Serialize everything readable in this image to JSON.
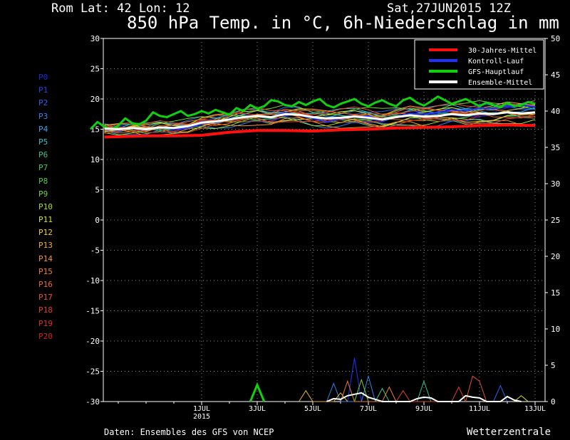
{
  "header": {
    "location": "Rom   Lat: 42 Lon: 12",
    "run": "Sat,27JUN2015 12Z",
    "title": "850 hPa Temp. in °C, 6h-Niederschlag in mm"
  },
  "footer": {
    "credit": "Daten: Ensembles des GFS von NCEP",
    "brand": "Wetterzentrale"
  },
  "members": [
    "P0",
    "P1",
    "P2",
    "P3",
    "P4",
    "P5",
    "P6",
    "P7",
    "P8",
    "P9",
    "P10",
    "P11",
    "P12",
    "P13",
    "P14",
    "P15",
    "P16",
    "P17",
    "P18",
    "P19",
    "P20"
  ],
  "member_colors": [
    "#1b2dd8",
    "#1f46e0",
    "#2266e8",
    "#2a86ee",
    "#2ea8ee",
    "#30c2cc",
    "#2ec896",
    "#36cc66",
    "#4ad040",
    "#76d430",
    "#a8dc2a",
    "#d8e02a",
    "#f0d028",
    "#f0b028",
    "#f09828",
    "#ee8028",
    "#ea6a28",
    "#e85428",
    "#e04028",
    "#d83028",
    "#cc2020"
  ],
  "chart_data": {
    "type": "line",
    "title": "850 hPa Temp. in °C, 6h-Niederschlag in mm",
    "x_ticks": [
      {
        "day": 4,
        "label": "1JUL",
        "sub": "2015"
      },
      {
        "day": 6,
        "label": "3JUL"
      },
      {
        "day": 8,
        "label": "5JUL"
      },
      {
        "day": 10,
        "label": "7JUL"
      },
      {
        "day": 12,
        "label": "9JUL"
      },
      {
        "day": 14,
        "label": "11JUL"
      },
      {
        "day": 16,
        "label": "13JUL"
      }
    ],
    "x_range_days": [
      0.5,
      16
    ],
    "y_left": {
      "range": [
        -30,
        30
      ],
      "ticks": [
        -30,
        -25,
        -20,
        -15,
        -10,
        -5,
        0,
        5,
        10,
        15,
        20,
        25,
        30
      ]
    },
    "y_right": {
      "range": [
        0,
        50
      ],
      "ticks": [
        0,
        5,
        10,
        15,
        20,
        25,
        30,
        35,
        40,
        45,
        50
      ]
    },
    "grid": "dotted",
    "legend_position": "top-right",
    "series": [
      {
        "name": "30-Jahres-Mittel",
        "color": "#ff1010",
        "width": 4,
        "x": [
          0.5,
          2,
          3,
          4,
          5,
          6,
          7,
          8,
          9,
          10,
          11,
          12,
          13,
          14,
          15,
          16
        ],
        "y": [
          13.7,
          13.9,
          13.9,
          14.0,
          14.5,
          14.8,
          14.8,
          14.7,
          14.9,
          15.0,
          15.2,
          15.3,
          15.4,
          15.6,
          15.7,
          15.6
        ]
      },
      {
        "name": "Kontroll-Lauf",
        "color": "#2030ff",
        "width": 2,
        "x": [
          0.5,
          1,
          1.5,
          2,
          2.5,
          3,
          3.5,
          4,
          4.5,
          5,
          5.5,
          6,
          6.5,
          7,
          7.5,
          8,
          8.5,
          9,
          9.5,
          10,
          10.5,
          11,
          11.5,
          12,
          12.5,
          13,
          13.5,
          14,
          14.5,
          15,
          15.5,
          16
        ],
        "y": [
          15.0,
          14.9,
          15.2,
          15.0,
          15.3,
          15.0,
          15.2,
          15.9,
          16.2,
          16.8,
          17.0,
          17.2,
          17.0,
          17.8,
          17.3,
          16.8,
          16.2,
          16.8,
          17.0,
          17.2,
          16.5,
          17.0,
          17.6,
          17.5,
          17.8,
          18.2,
          18.0,
          18.5,
          18.4,
          18.8,
          19.0,
          18.7
        ]
      },
      {
        "name": "GFS-Hauptlauf",
        "color": "#10d010",
        "width": 3,
        "x": [
          0,
          0.25,
          0.5,
          0.75,
          1,
          1.25,
          1.5,
          1.75,
          2,
          2.25,
          2.5,
          2.75,
          3,
          3.25,
          3.5,
          3.75,
          4,
          4.25,
          4.5,
          4.75,
          5,
          5.25,
          5.5,
          5.75,
          6,
          6.25,
          6.5,
          6.75,
          7,
          7.25,
          7.5,
          7.75,
          8,
          8.25,
          8.5,
          8.75,
          9,
          9.25,
          9.5,
          9.75,
          10,
          10.25,
          10.5,
          10.75,
          11,
          11.25,
          11.5,
          11.75,
          12,
          12.25,
          12.5,
          12.75,
          13,
          13.25,
          13.5,
          13.75,
          14,
          14.25,
          14.5,
          14.75,
          15,
          15.25,
          15.5,
          15.75,
          16
        ],
        "y": [
          15,
          16.2,
          15.4,
          15.0,
          15.6,
          16.8,
          16.0,
          15.8,
          16.4,
          17.8,
          17.2,
          17.0,
          17.5,
          18.0,
          17.2,
          17.5,
          18.0,
          17.6,
          18.2,
          17.8,
          17.4,
          18.5,
          18.0,
          19.0,
          18.4,
          18.8,
          19.8,
          19.6,
          19.0,
          18.8,
          19.5,
          19.0,
          19.6,
          20.0,
          19.0,
          18.6,
          19.2,
          19.6,
          20.0,
          19.2,
          18.8,
          19.4,
          19.8,
          19.2,
          18.8,
          19.8,
          20.2,
          19.4,
          18.9,
          19.6,
          20.4,
          19.8,
          19.2,
          19.6,
          20.0,
          19.4,
          18.8,
          19.4,
          19.0,
          18.6,
          19.4,
          18.8,
          19.0,
          19.5,
          19.2
        ]
      },
      {
        "name": "Ensemble-Mittel",
        "color": "#ffffff",
        "width": 3,
        "x": [
          0.5,
          1,
          1.5,
          2,
          2.5,
          3,
          3.5,
          4,
          4.5,
          5,
          5.5,
          6,
          6.5,
          7,
          7.5,
          8,
          8.5,
          9,
          9.5,
          10,
          10.5,
          11,
          11.5,
          12,
          12.5,
          13,
          13.5,
          14,
          14.5,
          15,
          15.5,
          16
        ],
        "y": [
          15.1,
          15.0,
          15.2,
          15.0,
          15.3,
          15.2,
          15.5,
          16.1,
          16.3,
          16.6,
          17.0,
          17.2,
          17.0,
          17.5,
          17.4,
          17.0,
          16.8,
          16.9,
          17.1,
          16.9,
          16.6,
          17.0,
          17.3,
          17.1,
          17.2,
          17.5,
          17.3,
          17.6,
          17.5,
          17.8,
          17.6,
          17.8
        ]
      }
    ],
    "ensemble_temp_offsets": [
      0.2,
      -0.5,
      0.8,
      -1.2,
      0.4,
      1.0,
      -0.8,
      0.6,
      -0.3,
      1.3,
      -1.0,
      0.5,
      -0.6,
      0.9,
      -1.4,
      0.3,
      -0.2,
      1.1,
      -0.9,
      0.7,
      -0.4
    ],
    "precipitation": [
      {
        "series": "GFS-Hauptlauf",
        "color": "#10d010",
        "x": [
          5.75,
          6.0,
          6.25
        ],
        "y": [
          0,
          2.3,
          0
        ]
      },
      {
        "series": "Kontroll-Lauf",
        "color": "#2030ff",
        "x": [
          9.25,
          9.5,
          9.75
        ],
        "y": [
          0,
          6.0,
          0
        ]
      },
      {
        "series": "P3",
        "color": "#2a86ee",
        "x": [
          8.5,
          8.75,
          9.0,
          9.75,
          10.0,
          10.25
        ],
        "y": [
          0,
          2.5,
          0,
          0,
          3.5,
          0
        ]
      },
      {
        "series": "P6",
        "color": "#2ec896",
        "x": [
          10.25,
          10.5,
          10.75,
          11.75,
          12.0,
          12.25
        ],
        "y": [
          0,
          1.8,
          0,
          0,
          2.8,
          0
        ]
      },
      {
        "series": "P9",
        "color": "#76d430",
        "x": [
          9.5,
          9.75,
          10.0
        ],
        "y": [
          0,
          3.0,
          0
        ]
      },
      {
        "series": "P13",
        "color": "#f0b028",
        "x": [
          7.5,
          7.75,
          8.0,
          8.75,
          9.0,
          9.25
        ],
        "y": [
          0,
          1.5,
          0,
          0,
          1.2,
          0
        ]
      },
      {
        "series": "P15",
        "color": "#ee8028",
        "x": [
          9.0,
          9.25,
          9.5,
          10.5,
          10.75,
          11.0
        ],
        "y": [
          0,
          2.8,
          0,
          0,
          2.0,
          0
        ]
      },
      {
        "series": "P17",
        "color": "#e85428",
        "x": [
          13.5,
          13.75,
          14.0,
          14.25
        ],
        "y": [
          0,
          3.5,
          2.8,
          0
        ]
      },
      {
        "series": "P18",
        "color": "#e04028",
        "x": [
          11.0,
          11.25,
          11.5,
          13.0,
          13.25,
          13.5
        ],
        "y": [
          0,
          1.5,
          0,
          0,
          2.0,
          0
        ]
      },
      {
        "series": "P2",
        "color": "#2266e8",
        "x": [
          14.5,
          14.75,
          15.0
        ],
        "y": [
          0,
          2.2,
          0
        ]
      },
      {
        "series": "P11",
        "color": "#d8e02a",
        "x": [
          15.25,
          15.5,
          15.75
        ],
        "y": [
          0,
          0.8,
          0
        ]
      },
      {
        "series": "Ensemble-Mittel",
        "color": "#ffffff",
        "x": [
          8.5,
          8.75,
          9.0,
          9.25,
          9.5,
          9.75,
          10.0,
          10.25,
          10.5,
          11.5,
          11.75,
          12.0,
          12.25,
          12.5,
          13.25,
          13.5,
          13.75,
          14.0,
          14.25,
          14.75,
          15.0,
          15.25,
          15.5
        ],
        "y": [
          0,
          0.4,
          0.3,
          0.8,
          1.0,
          1.2,
          0.6,
          0.3,
          0,
          0,
          0.4,
          0.6,
          0.5,
          0,
          0,
          0.8,
          0.6,
          0.5,
          0,
          0,
          0.7,
          0.2,
          0
        ]
      }
    ]
  }
}
